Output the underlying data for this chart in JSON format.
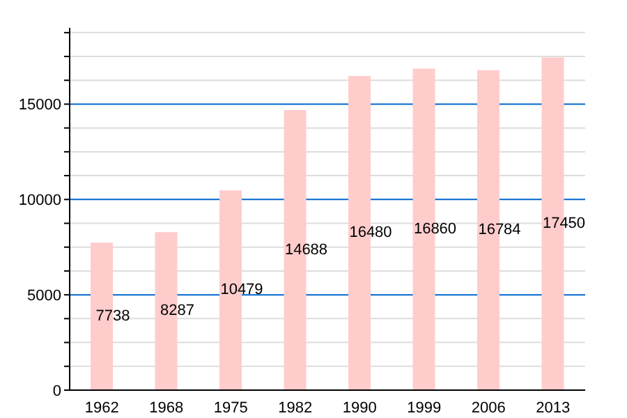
{
  "chart_data": {
    "type": "bar",
    "categories": [
      "1962",
      "1968",
      "1975",
      "1982",
      "1990",
      "1999",
      "2006",
      "2013"
    ],
    "values": [
      7738,
      8287,
      10479,
      14688,
      16480,
      16860,
      16784,
      17450
    ],
    "color": "#ffcccc",
    "data_labels": true,
    "ylim": [
      0,
      19000
    ],
    "yticks": [
      0,
      {
        "value": 1250,
        "label": null
      },
      {
        "value": 2500,
        "label": null
      },
      {
        "value": 3750,
        "label": null
      },
      5000,
      {
        "value": 6250,
        "label": null
      },
      {
        "value": 7500,
        "label": null
      },
      {
        "value": 8750,
        "label": null
      },
      10000,
      {
        "value": 11250,
        "label": null
      },
      {
        "value": 12500,
        "label": null
      },
      {
        "value": 13750,
        "label": null
      },
      15000,
      {
        "value": 16250,
        "label": null
      },
      {
        "value": 17500,
        "label": null
      },
      {
        "value": 18750,
        "label": null
      }
    ],
    "grid": true
  }
}
